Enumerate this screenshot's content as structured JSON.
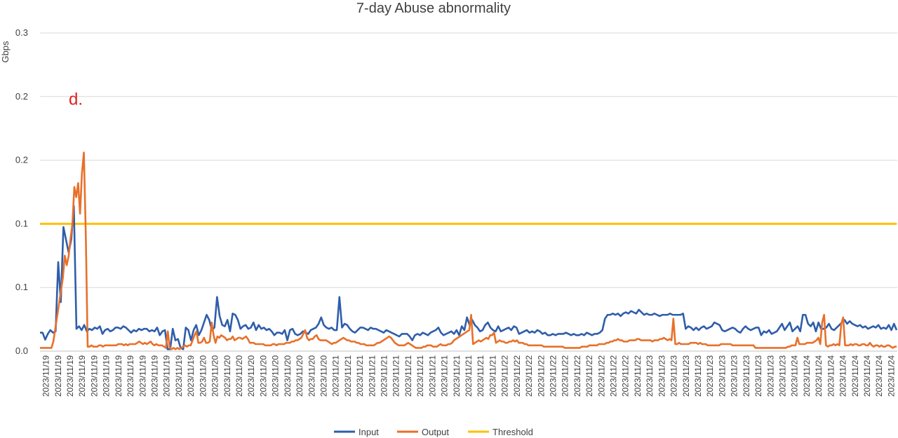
{
  "chart_data": {
    "type": "line",
    "title": "7-day Abuse abnormality",
    "ylabel": "Gbps",
    "xlabel": "",
    "ylim": [
      0,
      0.25
    ],
    "y_ticks": [
      0,
      0.05,
      0.1,
      0.15,
      0.2,
      0.25
    ],
    "y_tick_labels": [
      "0.0",
      "0.1",
      "0.1",
      "0.2",
      "0.2",
      "0.3"
    ],
    "grid": "horizontal",
    "legend_position": "bottom",
    "colors": {
      "input": "#2E5EAA",
      "output": "#E8702A",
      "threshold": "#FFC000",
      "annotation": "#E02020",
      "grid": "#D9D9D9"
    },
    "x_labels": [
      "2023/11/19",
      "2023/11/19",
      "2023/11/19",
      "2023/11/19",
      "2023/11/19",
      "2023/11/19",
      "2023/11/19",
      "2023/11/19",
      "2023/11/19",
      "2023/11/19",
      "2023/11/19",
      "2023/11/19",
      "2023/11/19",
      "2023/11/20",
      "2023/11/20",
      "2023/11/20",
      "2023/11/20",
      "2023/11/20",
      "2023/11/20",
      "2023/11/20",
      "2023/11/20",
      "2023/11/20",
      "2023/11/20",
      "2023/11/20",
      "2023/11/21",
      "2023/11/21",
      "2023/11/21",
      "2023/11/21",
      "2023/11/21",
      "2023/11/21",
      "2023/11/21",
      "2023/11/21",
      "2023/11/21",
      "2023/11/21",
      "2023/11/21",
      "2023/11/21",
      "2023/11/21",
      "2023/11/21",
      "2023/11/22",
      "2023/11/22",
      "2023/11/22",
      "2023/11/22",
      "2023/11/22",
      "2023/11/22",
      "2023/11/22",
      "2023/11/22",
      "2023/11/22",
      "2023/11/22",
      "2023/11/22",
      "2023/11/22",
      "2023/11/23",
      "2023/11/23",
      "2023/11/23",
      "2023/11/23",
      "2023/11/23",
      "2023/11/23",
      "2023/11/23",
      "2023/11/23",
      "2023/11/23",
      "2023/11/23",
      "2023/11/23",
      "2023/11/23",
      "2023/11/24",
      "2023/11/24",
      "2023/11/24",
      "2023/11/24",
      "2023/11/24",
      "2023/11/24",
      "2023/11/24",
      "2023/11/24",
      "2023/11/24"
    ],
    "annotations": [
      {
        "text": "d.",
        "x": 10,
        "y": 0.198
      }
    ],
    "series": [
      {
        "name": "Input",
        "values": [
          0.0145,
          0.0145,
          0.009,
          0.0135,
          0.0165,
          0.0145,
          0.0155,
          0.07,
          0.0385,
          0.0975,
          0.0875,
          0.0775,
          0.0875,
          0.114,
          0.0175,
          0.0195,
          0.0165,
          0.0205,
          0.0155,
          0.0175,
          0.0165,
          0.0185,
          0.0175,
          0.0195,
          0.0135,
          0.0165,
          0.0175,
          0.0155,
          0.0165,
          0.0185,
          0.0185,
          0.0175,
          0.0195,
          0.0185,
          0.0165,
          0.0145,
          0.0165,
          0.0155,
          0.0175,
          0.0165,
          0.0175,
          0.0175,
          0.0155,
          0.0165,
          0.0155,
          0.0185,
          0.0125,
          0.0155,
          0.0165,
          0.0015,
          0.0015,
          0.0175,
          0.0085,
          0.0095,
          0.0025,
          0.0015,
          0.0185,
          0.0165,
          0.0085,
          0.0165,
          0.0205,
          0.0125,
          0.0165,
          0.0225,
          0.0285,
          0.0245,
          0.0165,
          0.0185,
          0.0425,
          0.0275,
          0.0205,
          0.0195,
          0.0245,
          0.0155,
          0.0295,
          0.0285,
          0.0245,
          0.0175,
          0.0195,
          0.0205,
          0.0175,
          0.0185,
          0.0225,
          0.0165,
          0.0205,
          0.0175,
          0.0185,
          0.0165,
          0.0175,
          0.0155,
          0.0125,
          0.0145,
          0.0145,
          0.0135,
          0.0165,
          0.0085,
          0.0165,
          0.0175,
          0.0135,
          0.0125,
          0.0135,
          0.0155,
          0.0145,
          0.0135,
          0.0165,
          0.0175,
          0.0185,
          0.0215,
          0.0265,
          0.0205,
          0.0185,
          0.0175,
          0.0185,
          0.0165,
          0.0165,
          0.0425,
          0.0185,
          0.0215,
          0.0205,
          0.0175,
          0.0155,
          0.0145,
          0.0165,
          0.0185,
          0.0185,
          0.0175,
          0.0165,
          0.0185,
          0.0175,
          0.0175,
          0.0165,
          0.0155,
          0.0145,
          0.0165,
          0.0155,
          0.0145,
          0.0135,
          0.0125,
          0.0115,
          0.0135,
          0.0135,
          0.0135,
          0.0115,
          0.0085,
          0.0125,
          0.0135,
          0.0125,
          0.0145,
          0.0135,
          0.0125,
          0.0145,
          0.0155,
          0.0165,
          0.0185,
          0.0145,
          0.0125,
          0.0135,
          0.0145,
          0.0155,
          0.0135,
          0.0165,
          0.0125,
          0.0195,
          0.0165,
          0.0265,
          0.0205,
          0.0245,
          0.0205,
          0.0185,
          0.0155,
          0.0165,
          0.0205,
          0.0225,
          0.0185,
          0.0165,
          0.0155,
          0.0195,
          0.0155,
          0.0165,
          0.0175,
          0.0185,
          0.0165,
          0.0195,
          0.0185,
          0.0135,
          0.0145,
          0.0155,
          0.0165,
          0.0145,
          0.0155,
          0.0145,
          0.0165,
          0.0155,
          0.0135,
          0.0145,
          0.0125,
          0.0125,
          0.0135,
          0.0125,
          0.0135,
          0.0135,
          0.0135,
          0.0145,
          0.0135,
          0.0125,
          0.0135,
          0.0125,
          0.0125,
          0.0135,
          0.0125,
          0.0145,
          0.0135,
          0.0125,
          0.0135,
          0.0135,
          0.0145,
          0.0165,
          0.0255,
          0.0285,
          0.0285,
          0.0295,
          0.0285,
          0.0295,
          0.0275,
          0.0295,
          0.0305,
          0.0295,
          0.0315,
          0.0305,
          0.0295,
          0.0325,
          0.0305,
          0.0285,
          0.0295,
          0.0285,
          0.0285,
          0.0295,
          0.0285,
          0.0275,
          0.0285,
          0.0285,
          0.0285,
          0.0295,
          0.0285,
          0.0285,
          0.0285,
          0.0285,
          0.0295,
          0.0175,
          0.0195,
          0.0185,
          0.0165,
          0.0185,
          0.0165,
          0.0185,
          0.0195,
          0.0175,
          0.0185,
          0.0195,
          0.0225,
          0.0215,
          0.0205,
          0.0165,
          0.0155,
          0.0165,
          0.0175,
          0.0185,
          0.0175,
          0.0155,
          0.0145,
          0.0175,
          0.0195,
          0.0175,
          0.0165,
          0.0175,
          0.0185,
          0.0185,
          0.0125,
          0.0155,
          0.0145,
          0.0165,
          0.0135,
          0.0145,
          0.0155,
          0.0185,
          0.0215,
          0.0165,
          0.0195,
          0.0225,
          0.0155,
          0.0175,
          0.0195,
          0.0155,
          0.0285,
          0.0285,
          0.0215,
          0.0195,
          0.0225,
          0.0155,
          0.0225,
          0.0175,
          0.0175,
          0.0185,
          0.0215,
          0.0175,
          0.0165,
          0.0185,
          0.0205,
          0.0225,
          0.0245,
          0.0215,
          0.0235,
          0.0215,
          0.0205,
          0.0195,
          0.0205,
          0.0185,
          0.0195,
          0.0175,
          0.0185,
          0.0195,
          0.0185,
          0.0205,
          0.0175,
          0.0185,
          0.0175,
          0.0205,
          0.0165,
          0.0215,
          0.0165
        ]
      },
      {
        "name": "Output",
        "values": [
          0.0025,
          0.0025,
          0.0025,
          0.0025,
          0.0025,
          0.0025,
          0.0025,
          0.0075,
          0.0175,
          0.0275,
          0.0375,
          0.0475,
          0.0575,
          0.075,
          0.0675,
          0.0745,
          0.0885,
          0.1,
          0.129,
          0.121,
          0.132,
          0.108,
          0.14,
          0.156,
          0.092,
          0.0035,
          0.0035,
          0.0045,
          0.0035,
          0.0035,
          0.0035,
          0.0045,
          0.0045,
          0.0035,
          0.0045,
          0.0045,
          0.0045,
          0.0045,
          0.0045,
          0.0045,
          0.0045,
          0.0055,
          0.0055,
          0.0055,
          0.0045,
          0.0055,
          0.0045,
          0.0055,
          0.0055,
          0.0055,
          0.0055,
          0.0065,
          0.0075,
          0.0065,
          0.0055,
          0.0065,
          0.0055,
          0.0065,
          0.0075,
          0.0055,
          0.0045,
          0.0055,
          0.0045,
          0.0045,
          0.0045,
          0.0035,
          0.0025,
          0.0155,
          0.0025,
          0.0015,
          0.0025,
          0.0015,
          0.0025,
          0.0015,
          0.0025,
          0.0035,
          0.0045,
          0.0035,
          0.0045,
          0.0045,
          0.0085,
          0.0125,
          0.0155,
          0.0065,
          0.0065,
          0.0075,
          0.0105,
          0.0065,
          0.0065,
          0.0075,
          0.0225,
          0.0125,
          0.0065,
          0.0115,
          0.0105,
          0.0125,
          0.0115,
          0.0105,
          0.0085,
          0.0095,
          0.0095,
          0.0115,
          0.0085,
          0.0095,
          0.0105,
          0.0105,
          0.0095,
          0.0105,
          0.0115,
          0.0095,
          0.0065,
          0.0065,
          0.0065,
          0.0055,
          0.0055,
          0.0055,
          0.0055,
          0.0055,
          0.0045,
          0.0045,
          0.0045,
          0.0045,
          0.0055,
          0.0055,
          0.0045,
          0.0055,
          0.0055,
          0.0055,
          0.0055,
          0.0065,
          0.0065,
          0.0065,
          0.0075,
          0.0075,
          0.0085,
          0.0085,
          0.0095,
          0.0105,
          0.0135,
          0.0165,
          0.0105,
          0.0085,
          0.0095,
          0.0095,
          0.0115,
          0.0125,
          0.0095,
          0.0085,
          0.0085,
          0.0085,
          0.0085,
          0.0075,
          0.0065,
          0.0055,
          0.0065,
          0.0065,
          0.0075,
          0.0085,
          0.0095,
          0.0105,
          0.0095,
          0.0085,
          0.0085,
          0.0075,
          0.0075,
          0.0075,
          0.0065,
          0.0065,
          0.0055,
          0.0055,
          0.0055,
          0.0045,
          0.0045,
          0.0045,
          0.0045,
          0.0045,
          0.0055,
          0.0065,
          0.0065,
          0.0075,
          0.0085,
          0.0095,
          0.0105,
          0.0115,
          0.0105,
          0.0085,
          0.0065,
          0.0055,
          0.0045,
          0.0045,
          0.0045,
          0.0045,
          0.0055,
          0.0065,
          0.0055,
          0.0045,
          0.0035,
          0.0025,
          0.0025,
          0.0025,
          0.0025,
          0.0035,
          0.0035,
          0.0045,
          0.0045,
          0.0045,
          0.0035,
          0.0035,
          0.0035,
          0.0045,
          0.0055,
          0.0045,
          0.0045,
          0.0045,
          0.0055,
          0.0055,
          0.0065,
          0.0085,
          0.0095,
          0.0105,
          0.0115,
          0.0125,
          0.0135,
          0.0145,
          0.0155,
          0.0165,
          0.0285,
          0.0055,
          0.0065,
          0.0075,
          0.0085,
          0.0075,
          0.0085,
          0.0095,
          0.0105,
          0.0095,
          0.0125,
          0.0125,
          0.0145,
          0.0065,
          0.0075,
          0.0085,
          0.0075,
          0.0075,
          0.0065,
          0.0065,
          0.0075,
          0.0075,
          0.0085,
          0.0075,
          0.0085,
          0.0065,
          0.0065,
          0.0065,
          0.0055,
          0.0055,
          0.0045,
          0.0045,
          0.0045,
          0.0045,
          0.0045,
          0.0045,
          0.0045,
          0.0045,
          0.0035,
          0.0035,
          0.0035,
          0.0035,
          0.0035,
          0.0035,
          0.0035,
          0.0035,
          0.0035,
          0.0035,
          0.0035,
          0.0025,
          0.0025,
          0.0025,
          0.0025,
          0.0025,
          0.0025,
          0.0025,
          0.0025,
          0.0025,
          0.0035,
          0.0035,
          0.0035,
          0.0035,
          0.0045,
          0.0045,
          0.0045,
          0.0045,
          0.0045,
          0.0055,
          0.0055,
          0.0055,
          0.0055,
          0.0065,
          0.0065,
          0.0075,
          0.0075,
          0.0085,
          0.0085,
          0.0095,
          0.0085,
          0.0085,
          0.0075,
          0.0075,
          0.0075,
          0.0085,
          0.0085,
          0.0085,
          0.0085,
          0.0095,
          0.0095,
          0.0085,
          0.0085,
          0.0085,
          0.0085,
          0.0085,
          0.0085,
          0.0075,
          0.0085,
          0.0085,
          0.0085,
          0.0095,
          0.0095,
          0.0105,
          0.0095,
          0.0085,
          0.0095,
          0.0085,
          0.0255,
          0.0055,
          0.0055,
          0.0065,
          0.0055,
          0.0055,
          0.0055,
          0.0055,
          0.0055,
          0.0065,
          0.0065,
          0.0065,
          0.0065,
          0.0055,
          0.0065,
          0.0055,
          0.0055,
          0.0055,
          0.0045,
          0.0045,
          0.0045,
          0.0045,
          0.0045,
          0.0045,
          0.0045,
          0.0055,
          0.0055,
          0.0055,
          0.0055,
          0.0055,
          0.0055,
          0.0045,
          0.0045,
          0.0045,
          0.0045,
          0.0045,
          0.0045,
          0.0045,
          0.0045,
          0.0045,
          0.0045,
          0.0045,
          0.0045,
          0.0025,
          0.0025,
          0.0025,
          0.0025,
          0.0025,
          0.0025,
          0.0025,
          0.0025,
          0.0025,
          0.0025,
          0.0025,
          0.0025,
          0.0025,
          0.0025,
          0.0025,
          0.0025,
          0.0025,
          0.0035,
          0.0035,
          0.0045,
          0.0045,
          0.0045,
          0.0105,
          0.0055,
          0.0055,
          0.0055,
          0.0055,
          0.0065,
          0.0065,
          0.0065,
          0.0065,
          0.0075,
          0.0085,
          0.0105,
          0.0055,
          0.0225,
          0.0285,
          0.0045,
          0.0035,
          0.0045,
          0.0045,
          0.0055,
          0.0045,
          0.0055,
          0.0045,
          0.0215,
          0.0265,
          0.0045,
          0.0045,
          0.0045,
          0.0055,
          0.0045,
          0.0055,
          0.0055,
          0.0045,
          0.0045,
          0.0055,
          0.0055,
          0.0045,
          0.0045,
          0.0065,
          0.0045,
          0.0035,
          0.0045,
          0.0045,
          0.0035,
          0.0045,
          0.0035,
          0.0035,
          0.0045,
          0.0045,
          0.0035,
          0.0025,
          0.0035,
          0.0035
        ]
      },
      {
        "name": "Threshold",
        "values": [
          0.1,
          0.1
        ]
      }
    ]
  }
}
